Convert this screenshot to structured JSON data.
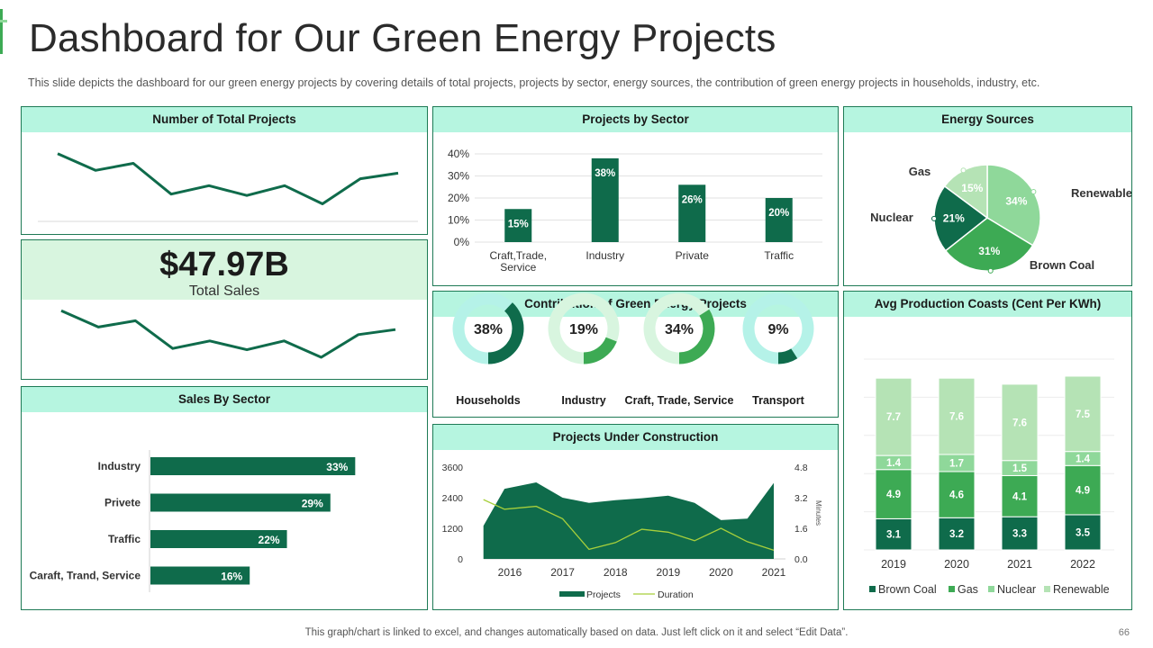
{
  "header": {
    "title": "Dashboard for Our Green Energy Projects",
    "subtitle": "This slide depicts the dashboard  for our green energy projects by covering  details of total projects,  projects by sector,  energy  sources, the contribution  of green  energy  projects in households, industry, etc."
  },
  "footer": {
    "note": "This graph/chart is linked to excel,  and changes automatically based on data. Just left click on it and select “Edit Data”.",
    "page": "66"
  },
  "colors": {
    "dark": "#0f6b4b",
    "mid": "#3daa54",
    "light": "#8fd89a",
    "pale": "#b5e3b5",
    "mint_head": "#b6f5e0",
    "teal_track": "#b5f2e8"
  },
  "total_projects": {
    "title": "Number of Total Projects"
  },
  "kpi": {
    "value": "$47.97B",
    "label": "Total Sales"
  },
  "sales_by_sector": {
    "title": "Sales By  Sector"
  },
  "projects_by_sector": {
    "title": "Projects by Sector"
  },
  "energy_sources": {
    "title": "Energy Sources"
  },
  "contribution": {
    "title": "Contribution  of Green Energy Projects"
  },
  "avg_costs": {
    "title": "Avg Production Coasts  (Cent Per KWh)"
  },
  "construction": {
    "title": "Projects Under Construction"
  },
  "chart_data": [
    {
      "id": "total_projects",
      "type": "line",
      "title": "Number of Total Projects",
      "x": [
        1,
        2,
        3,
        4,
        5,
        6,
        7,
        8,
        9,
        10
      ],
      "values": [
        9.2,
        6.8,
        7.8,
        3.4,
        4.6,
        3.2,
        4.6,
        2.0,
        5.6,
        6.4
      ],
      "ylim": [
        0,
        12
      ]
    },
    {
      "id": "kpi_sparkline",
      "type": "line",
      "x": [
        1,
        2,
        3,
        4,
        5,
        6,
        7,
        8,
        9,
        10
      ],
      "values": [
        9.4,
        6.8,
        7.8,
        3.4,
        4.6,
        3.2,
        4.6,
        2.0,
        5.6,
        6.4
      ],
      "ylim": [
        0,
        12
      ]
    },
    {
      "id": "projects_by_sector",
      "type": "bar",
      "title": "Projects by Sector",
      "categories": [
        "Craft,Trade,\nService",
        "Industry",
        "Private",
        "Traffic"
      ],
      "values": [
        15,
        38,
        26,
        20
      ],
      "labels": [
        "15%",
        "38%",
        "26%",
        "20%"
      ],
      "yticks": [
        "0%",
        "10%",
        "20%",
        "30%",
        "40%"
      ],
      "ylim": [
        0,
        40
      ]
    },
    {
      "id": "energy_sources",
      "type": "pie",
      "title": "Energy Sources",
      "slices": [
        {
          "label": "Renewable",
          "value": 34,
          "text": "34%"
        },
        {
          "label": "Brown Coal",
          "value": 31,
          "text": "31%"
        },
        {
          "label": "Nuclear",
          "value": 21,
          "text": "21%"
        },
        {
          "label": "Gas",
          "value": 15,
          "text": "15%"
        }
      ]
    },
    {
      "id": "sales_by_sector",
      "type": "bar",
      "orientation": "horizontal",
      "title": "Sales By  Sector",
      "categories": [
        "Industry",
        "Privete",
        "Traffic",
        "Caraft, Trand, Service"
      ],
      "values": [
        33,
        29,
        22,
        16
      ],
      "labels": [
        "33%",
        "29%",
        "22%",
        "16%"
      ],
      "xlim": [
        0,
        45
      ]
    },
    {
      "id": "contribution",
      "type": "pie",
      "subtype": "donut",
      "title": "Contribution  of Green Energy Projects",
      "items": [
        {
          "label": "Households",
          "value": 38,
          "text": "38%"
        },
        {
          "label": "Industry",
          "value": 19,
          "text": "19%"
        },
        {
          "label": "Craft, Trade, Service",
          "value": 34,
          "text": "34%"
        },
        {
          "label": "Transport",
          "value": 9,
          "text": "9%"
        }
      ]
    },
    {
      "id": "construction",
      "type": "area",
      "title": "Projects Under Construction",
      "x": [
        2015.5,
        2015.9,
        2016.5,
        2017.0,
        2017.5,
        2018.0,
        2018.5,
        2019.0,
        2019.5,
        2020.0,
        2020.5,
        2021.0
      ],
      "series": [
        {
          "name": "Projects",
          "kind": "area",
          "axis": "left",
          "values": [
            1300,
            2750,
            3000,
            2400,
            2200,
            2300,
            2380,
            2480,
            2200,
            1520,
            1580,
            2980
          ]
        },
        {
          "name": "Duration",
          "kind": "line",
          "axis": "right",
          "values": [
            3.1,
            2.6,
            2.75,
            2.1,
            0.5,
            0.85,
            1.55,
            1.4,
            0.95,
            1.6,
            0.9,
            0.45
          ]
        }
      ],
      "xticks": [
        "2016",
        "2017",
        "2018",
        "2019",
        "2020",
        "2021"
      ],
      "yticks_left": [
        "0",
        "1200",
        "2400",
        "3600"
      ],
      "yticks_right": [
        "0.0",
        "1.6",
        "3.2",
        "4.8"
      ],
      "ylim_left": [
        0,
        3600
      ],
      "ylim_right": [
        0,
        4.8
      ],
      "ylabel_right": "Minutes"
    },
    {
      "id": "avg_costs",
      "type": "bar",
      "stacked": true,
      "title": "Avg Production Coasts  (Cent Per KWh)",
      "categories": [
        "2019",
        "2020",
        "2021",
        "2022"
      ],
      "series": [
        {
          "name": "Brown Coal",
          "values": [
            3.1,
            3.2,
            3.3,
            3.5
          ]
        },
        {
          "name": "Gas",
          "values": [
            4.9,
            4.6,
            4.1,
            4.9
          ]
        },
        {
          "name": "Nuclear",
          "values": [
            1.4,
            1.7,
            1.5,
            1.4
          ]
        },
        {
          "name": "Renewable",
          "values": [
            7.7,
            7.6,
            7.6,
            7.5
          ]
        }
      ],
      "ylim": [
        0,
        19
      ]
    }
  ]
}
